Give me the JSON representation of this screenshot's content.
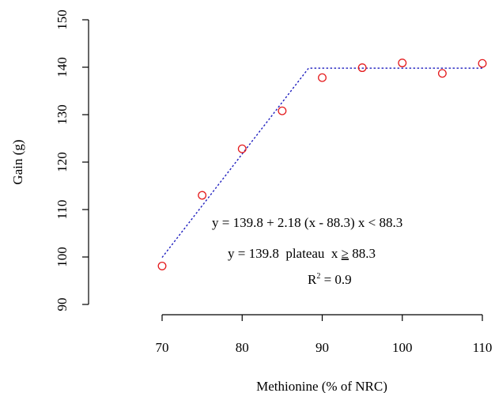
{
  "chart_data": {
    "type": "scatter",
    "xlabel": "Methionine (% of NRC)",
    "ylabel": "Gain (g)",
    "xlim": [
      70,
      110
    ],
    "ylim": [
      90,
      150
    ],
    "xticks": [
      70,
      80,
      90,
      100,
      110
    ],
    "yticks": [
      90,
      100,
      110,
      120,
      130,
      140,
      150
    ],
    "grid": false,
    "series": [
      {
        "marker": "open-circle",
        "color": "#e41a1c",
        "x": [
          70,
          75,
          80,
          85,
          90,
          95,
          100,
          105,
          110
        ],
        "y": [
          98.1,
          113.0,
          122.8,
          130.8,
          137.8,
          139.9,
          140.9,
          138.7,
          140.8
        ]
      }
    ],
    "fit": {
      "model": "linear-plateau",
      "color": "#1f1fbf",
      "style": "dotted",
      "x": [
        70,
        88.3,
        110
      ],
      "y": [
        99.9,
        139.8,
        139.8
      ]
    },
    "annotations": {
      "eq1": "y = 139.8 + 2.18 (x - 88.3) x < 88.3",
      "eq2_main": "y = 139.8  plateau  x ",
      "eq2_sym": "≥",
      "eq2_tail": " 88.3",
      "r2_base": "R",
      "r2_sup": "2",
      "r2_tail": " = 0.9"
    }
  }
}
